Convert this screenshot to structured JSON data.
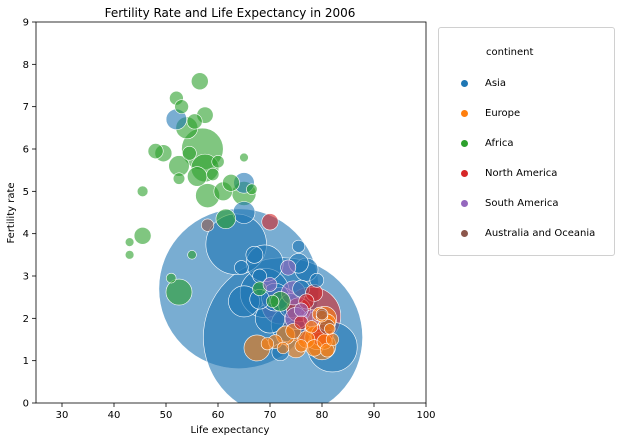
{
  "chart_data": {
    "type": "scatter",
    "title": "Fertility Rate and Life Expectancy in 2006",
    "xlabel": "Life expectancy",
    "ylabel": "Fertility rate",
    "xlim": [
      25,
      100
    ],
    "ylim": [
      0,
      9
    ],
    "xticks": [
      "30",
      "40",
      "50",
      "60",
      "70",
      "80",
      "90",
      "100"
    ],
    "yticks": [
      "0",
      "1",
      "2",
      "3",
      "4",
      "5",
      "6",
      "7",
      "8",
      "9"
    ],
    "grid": false,
    "legend": {
      "title": "continent",
      "placement": "outside-right",
      "entries": [
        "Asia",
        "Europe",
        "Africa",
        "North America",
        "South America",
        "Australia and Oceania"
      ]
    },
    "colors": {
      "Asia": "#1f77b4",
      "Europe": "#ff7f0e",
      "Africa": "#2ca02c",
      "North America": "#d62728",
      "South America": "#9467bd",
      "Australia and Oceania": "#8c564b"
    },
    "series": [
      {
        "name": "Asia",
        "points": [
          {
            "x": 64.0,
            "y": 2.7,
            "size": 1320
          },
          {
            "x": 72.5,
            "y": 1.55,
            "size": 1310
          },
          {
            "x": 63.5,
            "y": 3.75,
            "size": 190
          },
          {
            "x": 82.0,
            "y": 1.32,
            "size": 127
          },
          {
            "x": 69.0,
            "y": 2.6,
            "size": 125
          },
          {
            "x": 69.0,
            "y": 3.3,
            "size": 70
          },
          {
            "x": 73.5,
            "y": 1.85,
            "size": 60
          },
          {
            "x": 65.0,
            "y": 2.4,
            "size": 50
          },
          {
            "x": 70.0,
            "y": 2.0,
            "size": 45
          },
          {
            "x": 77.0,
            "y": 3.15,
            "size": 28
          },
          {
            "x": 65.0,
            "y": 4.5,
            "size": 25
          },
          {
            "x": 65.0,
            "y": 5.2,
            "size": 22
          },
          {
            "x": 52.0,
            "y": 6.7,
            "size": 22
          },
          {
            "x": 75.5,
            "y": 3.3,
            "size": 20
          },
          {
            "x": 67.0,
            "y": 3.5,
            "size": 15
          },
          {
            "x": 71.0,
            "y": 2.5,
            "size": 40
          },
          {
            "x": 74.0,
            "y": 2.3,
            "size": 30
          },
          {
            "x": 68.0,
            "y": 2.45,
            "size": 20
          },
          {
            "x": 76.0,
            "y": 2.7,
            "size": 15
          },
          {
            "x": 79.0,
            "y": 2.9,
            "size": 10
          },
          {
            "x": 75.5,
            "y": 3.7,
            "size": 8
          },
          {
            "x": 64.5,
            "y": 3.2,
            "size": 10
          },
          {
            "x": 72.0,
            "y": 1.2,
            "size": 15
          },
          {
            "x": 68.0,
            "y": 3.0,
            "size": 10
          }
        ]
      },
      {
        "name": "Europe",
        "points": [
          {
            "x": 79.5,
            "y": 1.85,
            "size": 45
          },
          {
            "x": 80.0,
            "y": 1.35,
            "size": 40
          },
          {
            "x": 67.5,
            "y": 1.3,
            "size": 35
          },
          {
            "x": 79.0,
            "y": 1.55,
            "size": 30
          },
          {
            "x": 80.5,
            "y": 2.0,
            "size": 30
          },
          {
            "x": 75.0,
            "y": 1.3,
            "size": 20
          },
          {
            "x": 73.0,
            "y": 1.6,
            "size": 18
          },
          {
            "x": 77.0,
            "y": 1.5,
            "size": 15
          },
          {
            "x": 81.0,
            "y": 1.9,
            "size": 15
          },
          {
            "x": 78.5,
            "y": 1.3,
            "size": 14
          },
          {
            "x": 80.5,
            "y": 1.45,
            "size": 12
          },
          {
            "x": 74.5,
            "y": 1.7,
            "size": 12
          },
          {
            "x": 79.5,
            "y": 2.1,
            "size": 10
          },
          {
            "x": 81.0,
            "y": 1.25,
            "size": 10
          },
          {
            "x": 71.0,
            "y": 1.45,
            "size": 10
          },
          {
            "x": 76.0,
            "y": 1.35,
            "size": 8
          },
          {
            "x": 69.5,
            "y": 1.4,
            "size": 8
          },
          {
            "x": 82.0,
            "y": 1.5,
            "size": 8
          },
          {
            "x": 78.0,
            "y": 1.8,
            "size": 8
          },
          {
            "x": 80.0,
            "y": 2.05,
            "size": 7
          },
          {
            "x": 72.5,
            "y": 1.3,
            "size": 7
          },
          {
            "x": 81.5,
            "y": 1.75,
            "size": 6
          }
        ]
      },
      {
        "name": "Africa",
        "points": [
          {
            "x": 57.0,
            "y": 6.0,
            "size": 90
          },
          {
            "x": 57.5,
            "y": 5.55,
            "size": 40
          },
          {
            "x": 52.5,
            "y": 2.62,
            "size": 35
          },
          {
            "x": 58.0,
            "y": 4.9,
            "size": 30
          },
          {
            "x": 65.0,
            "y": 4.95,
            "size": 30
          },
          {
            "x": 54.0,
            "y": 6.5,
            "size": 25
          },
          {
            "x": 52.5,
            "y": 5.6,
            "size": 22
          },
          {
            "x": 56.0,
            "y": 5.35,
            "size": 20
          },
          {
            "x": 61.5,
            "y": 4.35,
            "size": 20
          },
          {
            "x": 61.0,
            "y": 5.0,
            "size": 18
          },
          {
            "x": 56.5,
            "y": 7.6,
            "size": 15
          },
          {
            "x": 49.5,
            "y": 5.9,
            "size": 15
          },
          {
            "x": 45.5,
            "y": 3.95,
            "size": 15
          },
          {
            "x": 62.5,
            "y": 5.2,
            "size": 15
          },
          {
            "x": 57.5,
            "y": 6.8,
            "size": 14
          },
          {
            "x": 55.5,
            "y": 6.65,
            "size": 12
          },
          {
            "x": 48.0,
            "y": 5.95,
            "size": 12
          },
          {
            "x": 52.0,
            "y": 7.2,
            "size": 10
          },
          {
            "x": 53.0,
            "y": 7.0,
            "size": 10
          },
          {
            "x": 54.5,
            "y": 5.9,
            "size": 10
          },
          {
            "x": 60.0,
            "y": 5.7,
            "size": 8
          },
          {
            "x": 59.0,
            "y": 5.4,
            "size": 8
          },
          {
            "x": 52.5,
            "y": 5.3,
            "size": 7
          },
          {
            "x": 45.5,
            "y": 5.0,
            "size": 6
          },
          {
            "x": 66.5,
            "y": 5.05,
            "size": 6
          },
          {
            "x": 43.0,
            "y": 3.8,
            "size": 4
          },
          {
            "x": 43.0,
            "y": 3.5,
            "size": 4
          },
          {
            "x": 51.0,
            "y": 2.95,
            "size": 5
          },
          {
            "x": 55.0,
            "y": 3.5,
            "size": 4
          },
          {
            "x": 65.0,
            "y": 5.8,
            "size": 4
          },
          {
            "x": 70.5,
            "y": 2.4,
            "size": 8
          },
          {
            "x": 72.0,
            "y": 2.4,
            "size": 20
          },
          {
            "x": 68.0,
            "y": 2.7,
            "size": 10
          }
        ]
      },
      {
        "name": "North America",
        "points": [
          {
            "x": 78.0,
            "y": 2.05,
            "size": 175
          },
          {
            "x": 70.0,
            "y": 4.28,
            "size": 14
          },
          {
            "x": 75.5,
            "y": 2.2,
            "size": 30
          },
          {
            "x": 78.5,
            "y": 2.6,
            "size": 15
          },
          {
            "x": 77.0,
            "y": 2.4,
            "size": 12
          },
          {
            "x": 80.0,
            "y": 1.6,
            "size": 25
          },
          {
            "x": 76.0,
            "y": 1.9,
            "size": 10
          }
        ]
      },
      {
        "name": "South America",
        "points": [
          {
            "x": 72.0,
            "y": 2.3,
            "size": 70
          },
          {
            "x": 74.5,
            "y": 2.6,
            "size": 30
          },
          {
            "x": 75.0,
            "y": 2.0,
            "size": 25
          },
          {
            "x": 73.5,
            "y": 3.2,
            "size": 12
          },
          {
            "x": 78.0,
            "y": 2.0,
            "size": 15
          },
          {
            "x": 70.0,
            "y": 2.8,
            "size": 10
          },
          {
            "x": 76.0,
            "y": 2.2,
            "size": 10
          }
        ]
      },
      {
        "name": "Australia and Oceania",
        "points": [
          {
            "x": 58.0,
            "y": 4.2,
            "size": 8
          },
          {
            "x": 81.0,
            "y": 1.8,
            "size": 12
          },
          {
            "x": 80.0,
            "y": 2.1,
            "size": 7
          }
        ]
      }
    ]
  }
}
